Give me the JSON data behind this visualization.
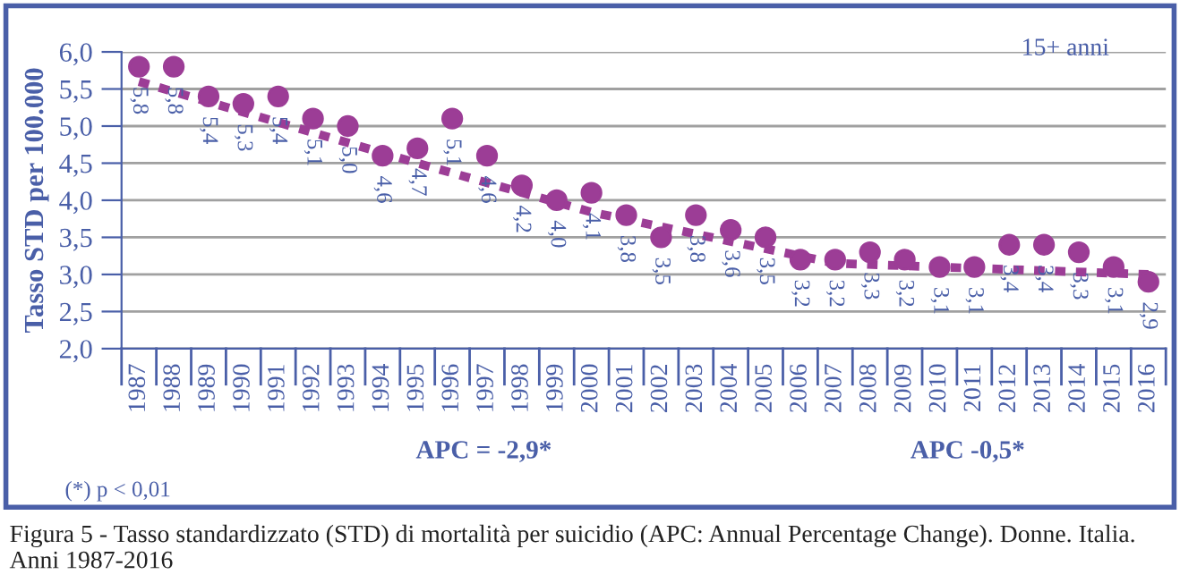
{
  "chart_data": {
    "type": "scatter",
    "ylabel": "Tasso STD per 100.000",
    "x": [
      1987,
      1988,
      1989,
      1990,
      1991,
      1992,
      1993,
      1994,
      1995,
      1996,
      1997,
      1998,
      1999,
      2000,
      2001,
      2002,
      2003,
      2004,
      2005,
      2006,
      2007,
      2008,
      2009,
      2010,
      2011,
      2012,
      2013,
      2014,
      2015,
      2016
    ],
    "series": [
      {
        "color": "#9c3d96",
        "marker": "circle",
        "values": [
          5.8,
          5.8,
          5.4,
          5.3,
          5.4,
          5.1,
          5.0,
          4.6,
          4.7,
          5.1,
          4.6,
          4.2,
          4.0,
          4.1,
          3.8,
          3.5,
          3.8,
          3.6,
          3.5,
          3.2,
          3.2,
          3.3,
          3.2,
          3.1,
          3.1,
          3.4,
          3.4,
          3.3,
          3.1,
          2.9
        ],
        "value_labels": [
          "5,8",
          "5,8",
          "5,4",
          "5,3",
          "5,4",
          "5,1",
          "5,0",
          "4,6",
          "4,7",
          "5,1",
          "4,6",
          "4,2",
          "4,0",
          "4,1",
          "3,8",
          "3,5",
          "3,8",
          "3,6",
          "3,5",
          "3,2",
          "3,2",
          "3,3",
          "3,2",
          "3,1",
          "3,1",
          "3,4",
          "3,4",
          "3,3",
          "3,1",
          "2,9"
        ]
      },
      {
        "type": "line",
        "color": "#9c3d96",
        "line_style": "dotted",
        "marker": "none",
        "x": [
          1987,
          1995,
          2000,
          2007,
          2016
        ],
        "values": [
          5.6,
          4.5,
          3.84,
          3.15,
          3.0
        ]
      }
    ],
    "xlim": [
      1986.5,
      2016.5
    ],
    "xticks": [
      1987,
      1988,
      1989,
      1990,
      1991,
      1992,
      1993,
      1994,
      1995,
      1996,
      1997,
      1998,
      1999,
      2000,
      2001,
      2002,
      2003,
      2004,
      2005,
      2006,
      2007,
      2008,
      2009,
      2010,
      2011,
      2012,
      2013,
      2014,
      2015,
      2016
    ],
    "ylim": [
      2.0,
      6.0
    ],
    "yticks": [
      {
        "value": 2.0,
        "label": "2,0"
      },
      {
        "value": 2.5,
        "label": "2,5"
      },
      {
        "value": 3.0,
        "label": "3,0"
      },
      {
        "value": 3.5,
        "label": "3,5"
      },
      {
        "value": 4.0,
        "label": "4,0"
      },
      {
        "value": 4.5,
        "label": "4,5"
      },
      {
        "value": 5.0,
        "label": "5,0"
      },
      {
        "value": 5.5,
        "label": "5,5"
      },
      {
        "value": 6.0,
        "label": "6,0"
      }
    ],
    "grid": "y",
    "annotations": [
      "15+ anni",
      "APC = -2,9*",
      "APC -0,5*",
      "(*) p < 0,01",
      "Figura 5 - Tasso standardizzato (STD) di mortalità per suicidio (APC: Annual Percentage Change). Donne. Italia. Anni 1987-2016"
    ]
  }
}
